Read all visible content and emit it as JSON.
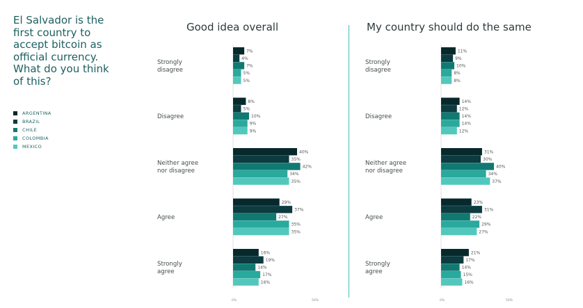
{
  "question": "El Salvador is the first country to accept bitcoin as official currency. What do you think of this?",
  "legend": [
    {
      "label": "ARGENTINA",
      "color": "#07292c"
    },
    {
      "label": "BRAZIL",
      "color": "#0c3b40"
    },
    {
      "label": "CHILE",
      "color": "#107a72"
    },
    {
      "label": "COLOMBIA",
      "color": "#2aa99d"
    },
    {
      "label": "MEXICO",
      "color": "#52c8bc"
    }
  ],
  "chart_data": [
    {
      "type": "bar",
      "orientation": "horizontal",
      "title": "Good idea overall",
      "categories": [
        "Strongly disagree",
        "Disagree",
        "Neither agree nor disagree",
        "Agree",
        "Strongly agree"
      ],
      "series": [
        {
          "name": "ARGENTINA",
          "values": [
            7,
            8,
            40,
            29,
            16
          ]
        },
        {
          "name": "BRAZIL",
          "values": [
            4,
            5,
            35,
            37,
            19
          ]
        },
        {
          "name": "CHILE",
          "values": [
            7,
            10,
            42,
            27,
            14
          ]
        },
        {
          "name": "COLOMBIA",
          "values": [
            5,
            9,
            34,
            35,
            17
          ]
        },
        {
          "name": "MEXICO",
          "values": [
            5,
            9,
            35,
            35,
            16
          ]
        }
      ],
      "value_suffix": "%",
      "xlim": [
        0,
        50
      ],
      "xticks": [
        "0%",
        "50%"
      ]
    },
    {
      "type": "bar",
      "orientation": "horizontal",
      "title": "My country should do the same",
      "categories": [
        "Strongly disagree",
        "Disagree",
        "Neither agree nor disagree",
        "Agree",
        "Strongly agree"
      ],
      "series": [
        {
          "name": "ARGENTINA",
          "values": [
            11,
            14,
            31,
            23,
            21
          ]
        },
        {
          "name": "BRAZIL",
          "values": [
            9,
            12,
            30,
            31,
            17
          ]
        },
        {
          "name": "CHILE",
          "values": [
            10,
            14,
            40,
            22,
            14
          ]
        },
        {
          "name": "COLOMBIA",
          "values": [
            8,
            14,
            34,
            29,
            15
          ]
        },
        {
          "name": "MEXICO",
          "values": [
            8,
            12,
            37,
            27,
            16
          ]
        }
      ],
      "value_suffix": "%",
      "xlim": [
        0,
        50
      ],
      "xticks": [
        "0%",
        "50%"
      ]
    }
  ]
}
